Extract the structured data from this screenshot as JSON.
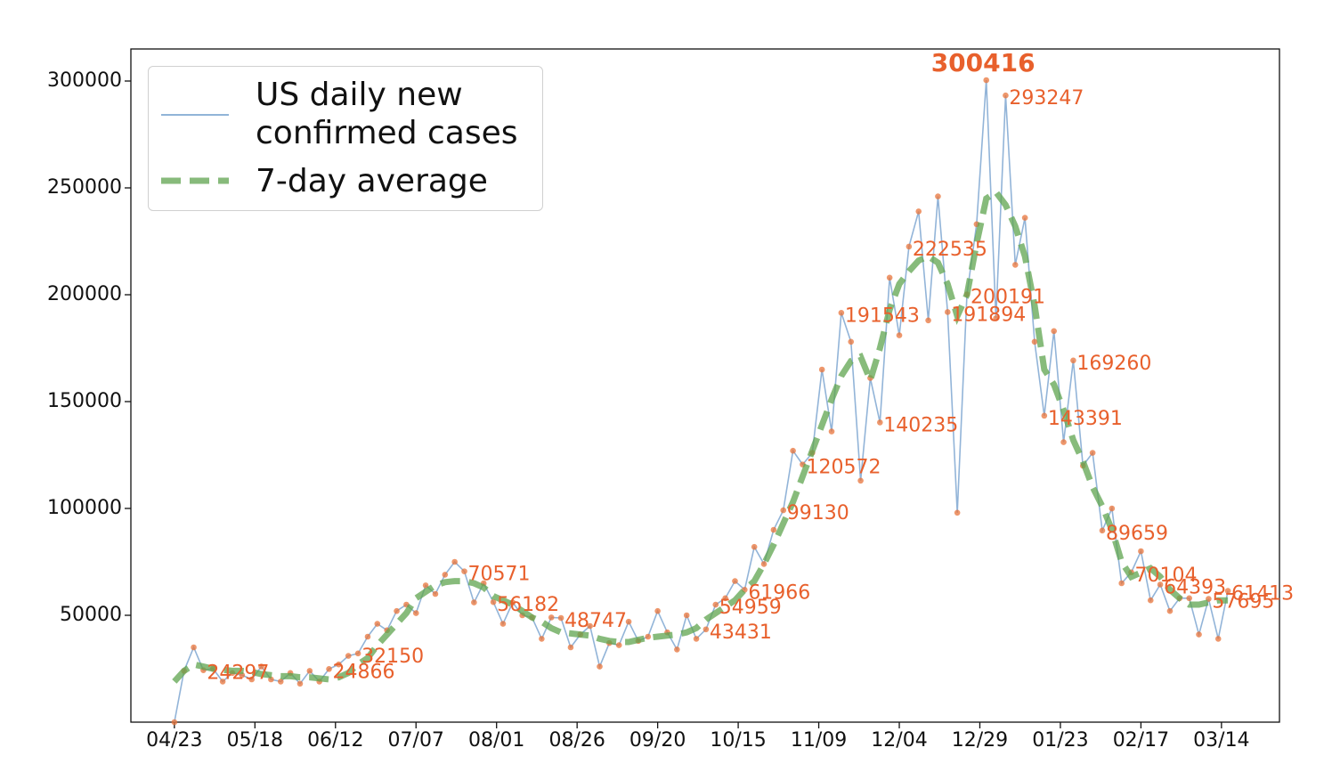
{
  "chart_data": {
    "type": "line",
    "x": [
      0,
      3,
      6,
      9,
      12,
      15,
      18,
      21,
      24,
      27,
      30,
      33,
      36,
      39,
      42,
      45,
      48,
      51,
      54,
      57,
      60,
      63,
      66,
      69,
      72,
      75,
      78,
      81,
      84,
      87,
      90,
      93,
      96,
      99,
      102,
      105,
      108,
      111,
      114,
      117,
      120,
      123,
      126,
      129,
      132,
      135,
      138,
      141,
      144,
      147,
      150,
      153,
      156,
      159,
      162,
      165,
      168,
      171,
      174,
      177,
      180,
      183,
      186,
      189,
      192,
      195,
      198,
      201,
      204,
      207,
      210,
      213,
      216,
      219,
      222,
      225,
      228,
      231,
      234,
      237,
      240,
      243,
      246,
      249,
      252,
      255,
      258,
      261,
      264,
      267,
      270,
      273,
      276,
      279,
      282,
      285,
      288,
      291,
      294,
      297,
      300,
      303,
      306,
      309,
      312,
      315,
      318,
      321,
      324,
      327
    ],
    "series": [
      {
        "name": "US daily new confirmed cases",
        "color": "#86acd4",
        "marker_color": "#e8743b",
        "values": [
          0,
          24000,
          35000,
          24297,
          25000,
          19000,
          23000,
          22000,
          20000,
          26000,
          20000,
          19000,
          23000,
          18000,
          24000,
          19000,
          24866,
          27000,
          31000,
          32150,
          40000,
          46000,
          43000,
          52000,
          55000,
          51000,
          64000,
          60000,
          69000,
          75000,
          70571,
          56000,
          65000,
          56182,
          46000,
          56000,
          50000,
          49000,
          39000,
          49000,
          48747,
          35000,
          41000,
          45000,
          26000,
          37000,
          36000,
          47000,
          38000,
          40000,
          52000,
          42000,
          34000,
          50000,
          39000,
          43431,
          54959,
          58000,
          66000,
          61966,
          82000,
          74000,
          90000,
          99130,
          127000,
          120572,
          126000,
          165000,
          136000,
          191543,
          178000,
          113000,
          161000,
          140235,
          208000,
          181000,
          222535,
          239000,
          188000,
          246000,
          191894,
          98000,
          200191,
          233000,
          300416,
          189000,
          293247,
          214000,
          236000,
          178000,
          143391,
          183000,
          131000,
          169260,
          120000,
          126000,
          89659,
          100000,
          65000,
          70104,
          80000,
          57000,
          64393,
          52000,
          58000,
          58000,
          41000,
          57695,
          39000,
          61413
        ]
      },
      {
        "name": "7-day average",
        "color": "#5fa44f",
        "dashed": true,
        "values": [
          19000,
          24000,
          27000,
          26000,
          25000,
          24500,
          24000,
          24000,
          23500,
          22500,
          22000,
          21500,
          21500,
          21000,
          21000,
          20500,
          20000,
          21000,
          23000,
          27000,
          30000,
          36000,
          41000,
          46000,
          51000,
          58000,
          61000,
          64000,
          65500,
          66000,
          66000,
          65000,
          63000,
          59000,
          57000,
          55000,
          52000,
          49000,
          47000,
          44000,
          42000,
          41500,
          41000,
          40500,
          39000,
          38000,
          37500,
          37500,
          38500,
          39500,
          40000,
          40500,
          41000,
          42000,
          44000,
          48000,
          51000,
          54000,
          57000,
          62000,
          66000,
          74000,
          83000,
          93000,
          103000,
          115000,
          127000,
          139000,
          151000,
          162000,
          169000,
          171000,
          160000,
          175000,
          193000,
          205000,
          211000,
          216000,
          218000,
          215000,
          205000,
          190000,
          200000,
          224000,
          245000,
          248000,
          242000,
          232000,
          218000,
          195000,
          165000,
          158000,
          146000,
          132000,
          122000,
          110000,
          101000,
          90000,
          75000,
          68000,
          70000,
          72000,
          68000,
          62000,
          58000,
          55000,
          55000,
          56000,
          57000,
          57000
        ]
      }
    ],
    "annotations": [
      {
        "x": 9,
        "value": 24297
      },
      {
        "x": 48,
        "value": 24866
      },
      {
        "x": 57,
        "value": 32150
      },
      {
        "x": 90,
        "value": 70571
      },
      {
        "x": 99,
        "value": 56182
      },
      {
        "x": 120,
        "value": 48747
      },
      {
        "x": 165,
        "value": 43431
      },
      {
        "x": 168,
        "value": 54959
      },
      {
        "x": 177,
        "value": 61966
      },
      {
        "x": 189,
        "value": 99130
      },
      {
        "x": 195,
        "value": 120572
      },
      {
        "x": 207,
        "value": 191543
      },
      {
        "x": 219,
        "value": 140235
      },
      {
        "x": 228,
        "value": 222535
      },
      {
        "x": 240,
        "value": 191894
      },
      {
        "x": 246,
        "value": 200191
      },
      {
        "x": 252,
        "value": 300416
      },
      {
        "x": 258,
        "value": 293247
      },
      {
        "x": 270,
        "value": 143391
      },
      {
        "x": 279,
        "value": 169260
      },
      {
        "x": 288,
        "value": 89659
      },
      {
        "x": 297,
        "value": 70104
      },
      {
        "x": 306,
        "value": 64393
      },
      {
        "x": 321,
        "value": 57695
      },
      {
        "x": 327,
        "value": 61413
      }
    ],
    "annotation_color": "#e8602c",
    "xlim": [
      -13.5,
      343
    ],
    "xticks": [
      {
        "value": 0,
        "label": "04/23"
      },
      {
        "value": 25,
        "label": "05/18"
      },
      {
        "value": 50,
        "label": "06/12"
      },
      {
        "value": 75,
        "label": "07/07"
      },
      {
        "value": 100,
        "label": "08/01"
      },
      {
        "value": 125,
        "label": "08/26"
      },
      {
        "value": 150,
        "label": "09/20"
      },
      {
        "value": 175,
        "label": "10/15"
      },
      {
        "value": 200,
        "label": "11/09"
      },
      {
        "value": 225,
        "label": "12/04"
      },
      {
        "value": 250,
        "label": "12/29"
      },
      {
        "value": 275,
        "label": "01/23"
      },
      {
        "value": 300,
        "label": "02/17"
      },
      {
        "value": 325,
        "label": "03/14"
      }
    ],
    "ylim": [
      0,
      315000
    ],
    "yticks": [
      50000,
      100000,
      150000,
      200000,
      250000,
      300000
    ],
    "legend": "upper left"
  }
}
